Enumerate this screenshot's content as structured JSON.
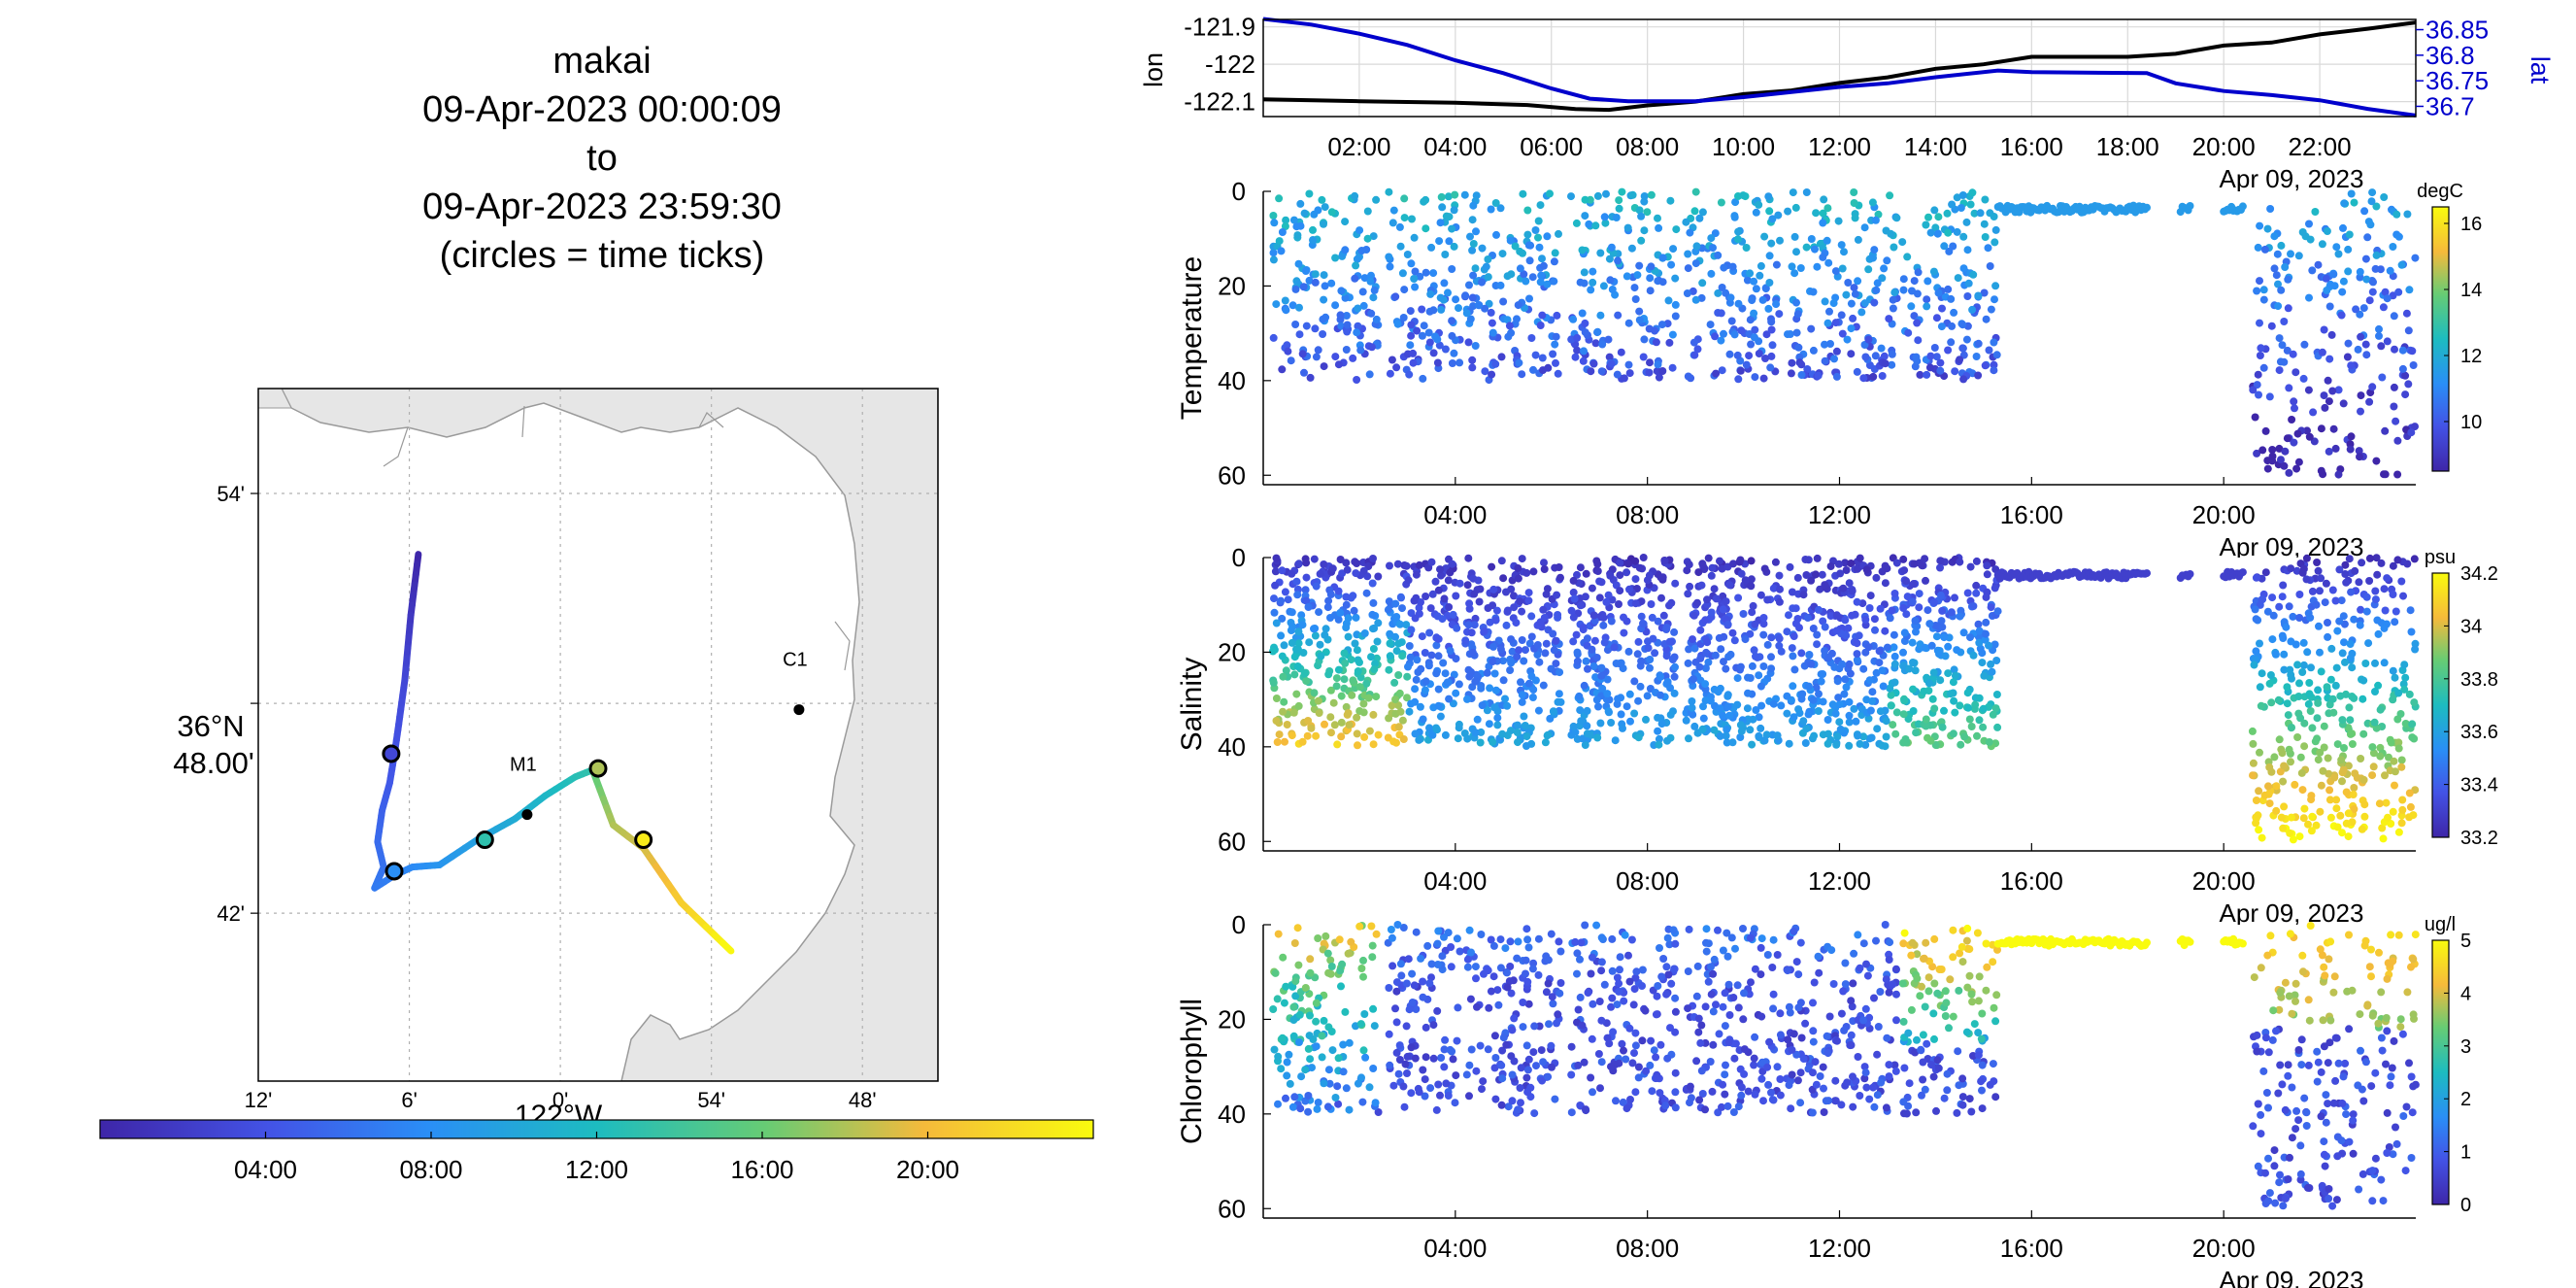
{
  "title": {
    "vehicle": "makai",
    "start": "09-Apr-2023 00:00:09",
    "to": "to",
    "end": "09-Apr-2023 23:59:30",
    "note": "(circles = time ticks)"
  },
  "chart_data": [
    {
      "id": "map",
      "type": "scatter",
      "title": "",
      "xlabel": "122°W",
      "ylabel": "36°N 48.00'",
      "x_ticks": [
        "12'",
        "6'",
        "0'",
        "54'",
        "48'"
      ],
      "y_ticks": [
        "54'",
        "48.00'",
        "42'"
      ],
      "lon_range": [
        -122.2,
        -121.75
      ],
      "lat_range": [
        36.62,
        36.95
      ],
      "grid": true,
      "stations": [
        {
          "name": "C1",
          "lon": -121.842,
          "lat": 36.797
        },
        {
          "name": "M1",
          "lon": -122.022,
          "lat": 36.747
        }
      ],
      "colorbar": {
        "ticks": [
          "04:00",
          "08:00",
          "12:00",
          "16:00",
          "20:00"
        ],
        "range_hours": [
          0,
          24
        ]
      },
      "track": [
        {
          "h": 0.0,
          "lon": -122.094,
          "lat": 36.871
        },
        {
          "h": 1.5,
          "lon": -122.099,
          "lat": 36.842
        },
        {
          "h": 3.0,
          "lon": -122.103,
          "lat": 36.811
        },
        {
          "h": 3.6,
          "lon": -122.107,
          "lat": 36.79
        },
        {
          "h": 4.0,
          "lon": -122.11,
          "lat": 36.775
        },
        {
          "h": 4.4,
          "lon": -122.113,
          "lat": 36.762
        },
        {
          "h": 5.0,
          "lon": -122.118,
          "lat": 36.749
        },
        {
          "h": 5.6,
          "lon": -122.121,
          "lat": 36.734
        },
        {
          "h": 6.0,
          "lon": -122.117,
          "lat": 36.722
        },
        {
          "h": 6.6,
          "lon": -122.123,
          "lat": 36.712
        },
        {
          "h": 7.0,
          "lon": -122.11,
          "lat": 36.718
        },
        {
          "h": 7.6,
          "lon": -122.098,
          "lat": 36.722
        },
        {
          "h": 8.5,
          "lon": -122.08,
          "lat": 36.723
        },
        {
          "h": 9.5,
          "lon": -122.055,
          "lat": 36.735
        },
        {
          "h": 10.5,
          "lon": -122.03,
          "lat": 36.745
        },
        {
          "h": 11.5,
          "lon": -122.01,
          "lat": 36.756
        },
        {
          "h": 12.5,
          "lon": -121.99,
          "lat": 36.765
        },
        {
          "h": 13.3,
          "lon": -121.976,
          "lat": 36.769
        },
        {
          "h": 15.5,
          "lon": -121.978,
          "lat": 36.767
        },
        {
          "h": 18.0,
          "lon": -121.965,
          "lat": 36.742
        },
        {
          "h": 19.0,
          "lon": -121.945,
          "lat": 36.731
        },
        {
          "h": 21.0,
          "lon": -121.92,
          "lat": 36.705
        },
        {
          "h": 24.0,
          "lon": -121.887,
          "lat": 36.682
        }
      ],
      "time_tick_circles": [
        {
          "lon": -122.112,
          "lat": 36.776
        },
        {
          "lon": -122.11,
          "lat": 36.72
        },
        {
          "lon": -122.05,
          "lat": 36.735
        },
        {
          "lon": -121.975,
          "lat": 36.769
        },
        {
          "lon": -121.945,
          "lat": 36.735
        }
      ]
    },
    {
      "id": "position",
      "type": "line",
      "x_range_hours": [
        0,
        24
      ],
      "x_ticks": [
        "02:00",
        "04:00",
        "06:00",
        "08:00",
        "10:00",
        "12:00",
        "14:00",
        "16:00",
        "18:00",
        "20:00",
        "22:00"
      ],
      "date_label": "Apr 09, 2023",
      "left_axis": {
        "label": "lon",
        "ticks": [
          "-121.9",
          "-122",
          "-122.1"
        ],
        "range": [
          -122.14,
          -121.88
        ]
      },
      "right_axis": {
        "label": "lat",
        "ticks": [
          "36.85",
          "36.8",
          "36.75",
          "36.7"
        ],
        "range": [
          36.68,
          36.87
        ]
      },
      "series": [
        {
          "axis": "left",
          "color": "#000000",
          "points": [
            [
              0,
              -122.094
            ],
            [
              2,
              -122.099
            ],
            [
              4,
              -122.103
            ],
            [
              5.5,
              -122.109
            ],
            [
              6.5,
              -122.12
            ],
            [
              7.2,
              -122.122
            ],
            [
              8,
              -122.11
            ],
            [
              9,
              -122.1
            ],
            [
              10,
              -122.08
            ],
            [
              11,
              -122.07
            ],
            [
              12,
              -122.05
            ],
            [
              13,
              -122.035
            ],
            [
              14,
              -122.012
            ],
            [
              15,
              -122.0
            ],
            [
              16,
              -121.98
            ],
            [
              17,
              -121.98
            ],
            [
              18,
              -121.98
            ],
            [
              19,
              -121.972
            ],
            [
              20,
              -121.95
            ],
            [
              21,
              -121.942
            ],
            [
              22,
              -121.92
            ],
            [
              23,
              -121.905
            ],
            [
              24,
              -121.888
            ]
          ]
        },
        {
          "axis": "right",
          "color": "#0000cc",
          "points": [
            [
              0,
              36.871
            ],
            [
              1,
              36.86
            ],
            [
              2,
              36.842
            ],
            [
              3,
              36.82
            ],
            [
              4,
              36.79
            ],
            [
              5,
              36.765
            ],
            [
              6,
              36.735
            ],
            [
              6.8,
              36.715
            ],
            [
              7.6,
              36.71
            ],
            [
              9,
              36.71
            ],
            [
              10,
              36.718
            ],
            [
              11,
              36.728
            ],
            [
              12,
              36.738
            ],
            [
              13,
              36.745
            ],
            [
              14,
              36.757
            ],
            [
              15.3,
              36.77
            ],
            [
              16,
              36.767
            ],
            [
              18.4,
              36.765
            ],
            [
              19,
              36.745
            ],
            [
              20,
              36.73
            ],
            [
              21,
              36.722
            ],
            [
              22,
              36.712
            ],
            [
              23,
              36.695
            ],
            [
              24,
              36.682
            ]
          ]
        }
      ]
    },
    {
      "id": "temperature",
      "type": "scatter",
      "ylabel": "Temperature",
      "y_range": [
        0,
        62
      ],
      "y_ticks": [
        "0",
        "20",
        "40",
        "60"
      ],
      "x_range_hours": [
        0,
        24
      ],
      "x_ticks": [
        "04:00",
        "08:00",
        "12:00",
        "16:00",
        "20:00"
      ],
      "date_label": "Apr 09, 2023",
      "colorbar": {
        "unit": "degC",
        "ticks": [
          "16",
          "14",
          "12",
          "10"
        ],
        "range": [
          8.5,
          16.5
        ]
      }
    },
    {
      "id": "salinity",
      "type": "scatter",
      "ylabel": "Salinity",
      "y_range": [
        0,
        62
      ],
      "y_ticks": [
        "0",
        "20",
        "40",
        "60"
      ],
      "x_range_hours": [
        0,
        24
      ],
      "x_ticks": [
        "04:00",
        "08:00",
        "12:00",
        "16:00",
        "20:00"
      ],
      "date_label": "Apr 09, 2023",
      "colorbar": {
        "unit": "psu",
        "ticks": [
          "34.2",
          "34",
          "33.8",
          "33.6",
          "33.4",
          "33.2"
        ],
        "range": [
          33.2,
          34.2
        ]
      }
    },
    {
      "id": "chlorophyll",
      "type": "scatter",
      "ylabel": "Chlorophyll",
      "y_range": [
        0,
        62
      ],
      "y_ticks": [
        "0",
        "20",
        "40",
        "60"
      ],
      "x_range_hours": [
        0,
        24
      ],
      "x_ticks": [
        "04:00",
        "08:00",
        "12:00",
        "16:00",
        "20:00"
      ],
      "date_label": "Apr 09, 2023",
      "colorbar": {
        "unit": "ug/l",
        "ticks": [
          "5",
          "4",
          "3",
          "2",
          "1",
          "0"
        ],
        "range": [
          0,
          5
        ]
      }
    }
  ]
}
